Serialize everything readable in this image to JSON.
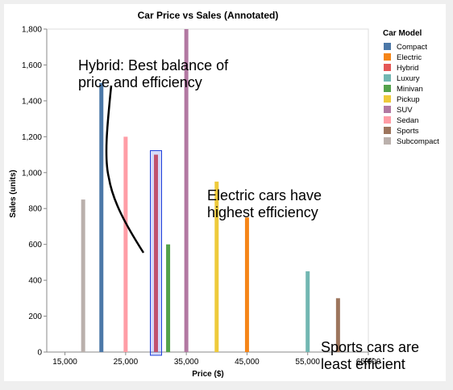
{
  "chart_data": {
    "type": "bar",
    "title": "Car Price vs Sales (Annotated)",
    "xlabel": "Price ($)",
    "ylabel": "Sales (units)",
    "xlim": [
      12000,
      65000
    ],
    "ylim": [
      0,
      1800
    ],
    "x_ticks": [
      15000,
      25000,
      35000,
      45000,
      55000,
      65000
    ],
    "x_tick_labels": [
      "15,000",
      "25,000",
      "35,000",
      "45,000",
      "55,000",
      "65,000"
    ],
    "y_ticks": [
      0,
      200,
      400,
      600,
      800,
      1000,
      1200,
      1400,
      1600,
      1800
    ],
    "y_tick_labels": [
      "0",
      "200",
      "400",
      "600",
      "800",
      "1,000",
      "1,200",
      "1,400",
      "1,600",
      "1,800"
    ],
    "grid": false,
    "legend_title": "Car Model",
    "legend_position": "right",
    "series": [
      {
        "name": "Compact",
        "color": "#4c78a8",
        "x": 21000,
        "value": 1500
      },
      {
        "name": "Electric",
        "color": "#f58518",
        "x": 45000,
        "value": 750
      },
      {
        "name": "Hybrid",
        "color": "#e45756",
        "x": 30000,
        "value": 1100
      },
      {
        "name": "Luxury",
        "color": "#72b7b2",
        "x": 55000,
        "value": 450
      },
      {
        "name": "Minivan",
        "color": "#54a24b",
        "x": 32000,
        "value": 600
      },
      {
        "name": "Pickup",
        "color": "#eeca3b",
        "x": 40000,
        "value": 950
      },
      {
        "name": "SUV",
        "color": "#b279a2",
        "x": 35000,
        "value": 1800
      },
      {
        "name": "Sedan",
        "color": "#ff9da6",
        "x": 25000,
        "value": 1200
      },
      {
        "name": "Sports",
        "color": "#9d755d",
        "x": 60000,
        "value": 300
      },
      {
        "name": "Subcompact",
        "color": "#bab0ac",
        "x": 18000,
        "value": 850
      }
    ],
    "highlight": {
      "x": 30000,
      "value": 1100,
      "color": "#1f3fdc"
    },
    "annotations": [
      {
        "lines": [
          "Hybrid: Best balance of",
          "price and efficiency"
        ]
      },
      {
        "lines": [
          "Electric cars have",
          "highest efficiency"
        ]
      },
      {
        "lines": [
          "Sports cars are",
          "least efficient"
        ]
      }
    ]
  }
}
